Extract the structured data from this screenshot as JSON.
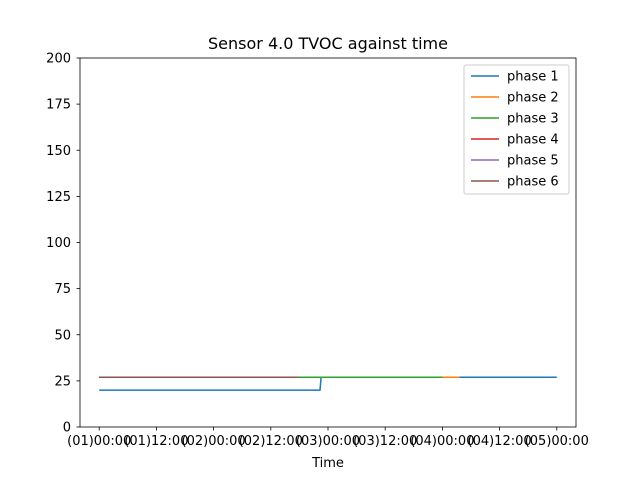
{
  "chart_data": {
    "type": "line",
    "title": "Sensor 4.0 TVOC against  time",
    "xlabel": "Time",
    "ylabel": "",
    "ylim": [
      0,
      200
    ],
    "xlim": [
      -0.168,
      4.168
    ],
    "y_ticks": [
      0,
      25,
      50,
      75,
      100,
      125,
      150,
      175,
      200
    ],
    "x_ticks": [
      {
        "value": 0.0,
        "label": "(01)00:00"
      },
      {
        "value": 0.5,
        "label": "(01)12:00"
      },
      {
        "value": 1.0,
        "label": "(02)00:00"
      },
      {
        "value": 1.5,
        "label": "(02)12:00"
      },
      {
        "value": 2.0,
        "label": "(03)00:00"
      },
      {
        "value": 2.5,
        "label": "(03)12:00"
      },
      {
        "value": 3.0,
        "label": "(04)00:00"
      },
      {
        "value": 3.5,
        "label": "(04)12:00"
      },
      {
        "value": 4.0,
        "label": "(05)00:00"
      }
    ],
    "grid": false,
    "legend_position": "top-right",
    "series": [
      {
        "name": "phase 1",
        "color": "#1f77b4",
        "x": [
          0.0,
          1.93,
          1.94,
          4.0
        ],
        "y": [
          20,
          20,
          27,
          27
        ]
      },
      {
        "name": "phase 2",
        "color": "#ff7f0e",
        "x": [
          0.0,
          3.15
        ],
        "y": [
          27,
          27
        ]
      },
      {
        "name": "phase 3",
        "color": "#2ca02c",
        "x": [
          0.0,
          3.0
        ],
        "y": [
          27,
          27
        ]
      },
      {
        "name": "phase 4",
        "color": "#d62728",
        "x": [
          0.0,
          1.75
        ],
        "y": [
          27,
          27
        ]
      },
      {
        "name": "phase 5",
        "color": "#9467bd",
        "x": [
          0.0,
          1.75
        ],
        "y": [
          27,
          27
        ]
      },
      {
        "name": "phase 6",
        "color": "#8c564b",
        "x": [
          0.0,
          1.75
        ],
        "y": [
          27,
          27
        ]
      }
    ]
  }
}
